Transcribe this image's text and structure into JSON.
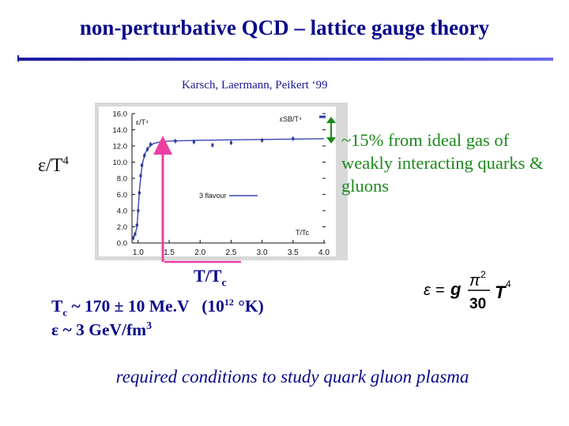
{
  "slide": {
    "title": "non-perturbative QCD – lattice gauge theory",
    "citation": "Karsch, Laermann, Peikert ‘99",
    "ylabel_main": "ε/T",
    "ylabel_sup": "4",
    "annotation": "~15% from ideal gas of weakly interacting quarks & gluons",
    "xlabel_main": "T/T",
    "xlabel_sub": "c",
    "tc": {
      "prefix": "T",
      "sub": "c",
      "value": " ~ 170 ± 10 Me.V   (10",
      "exp": "12",
      "unit": " °K)"
    },
    "energy": {
      "value": "ε ~ 3 GeV/fm",
      "sup": "3"
    },
    "summary": "required conditions to study quark gluon plasma",
    "formula": {
      "lhs": "ε",
      "eq": "=",
      "g": "g",
      "num": "π",
      "num_exp": "2",
      "den": "30",
      "T": "T",
      "T_exp": "4"
    }
  },
  "chart_data": {
    "type": "scatter",
    "x_range": [
      0.9,
      4.0
    ],
    "ylim": [
      0.0,
      16.0
    ],
    "x_ticks": [
      "1.0",
      "1.5",
      "2.0",
      "2.5",
      "3.0",
      "3.5",
      "4.0"
    ],
    "y_ticks": [
      "0.0",
      "2.0",
      "4.0",
      "6.0",
      "8.0",
      "10.0",
      "12.0",
      "14.0",
      "16.0"
    ],
    "inner_ylabel": "ε/T⁴",
    "inner_sb_label": "εSB/T⁴",
    "inner_xlabel": "T/Tc",
    "legend": "3 flavour",
    "stefan_boltzmann_limit": 15.6,
    "curve": {
      "x": [
        0.9,
        0.95,
        0.98,
        1.0,
        1.02,
        1.05,
        1.08,
        1.12,
        1.18,
        1.25,
        1.35,
        1.5,
        1.75,
        2.0,
        2.5,
        3.0,
        3.5,
        4.0
      ],
      "y": [
        0.6,
        1.0,
        2.0,
        4.0,
        6.5,
        8.8,
        10.2,
        11.2,
        11.9,
        12.3,
        12.5,
        12.6,
        12.65,
        12.7,
        12.75,
        12.8,
        12.85,
        12.9
      ]
    },
    "points": [
      {
        "x": 0.92,
        "y": 0.6
      },
      {
        "x": 0.95,
        "y": 1.1
      },
      {
        "x": 0.98,
        "y": 2.2
      },
      {
        "x": 1.0,
        "y": 4.0
      },
      {
        "x": 1.02,
        "y": 6.2
      },
      {
        "x": 1.04,
        "y": 8.3
      },
      {
        "x": 1.06,
        "y": 9.6
      },
      {
        "x": 1.1,
        "y": 10.8
      },
      {
        "x": 1.15,
        "y": 11.6
      },
      {
        "x": 1.2,
        "y": 12.2
      },
      {
        "x": 1.4,
        "y": 12.5
      },
      {
        "x": 1.6,
        "y": 12.6
      },
      {
        "x": 1.9,
        "y": 12.5
      },
      {
        "x": 2.2,
        "y": 12.1
      },
      {
        "x": 2.5,
        "y": 12.4
      },
      {
        "x": 3.0,
        "y": 12.7
      },
      {
        "x": 3.5,
        "y": 12.9
      }
    ],
    "colors": {
      "curve": "#3a45b0",
      "points": "#2a3a9a",
      "ticks": "#111111"
    }
  },
  "arrows": {
    "pink": "#ee3ea2",
    "green": "#1c8a1c"
  }
}
